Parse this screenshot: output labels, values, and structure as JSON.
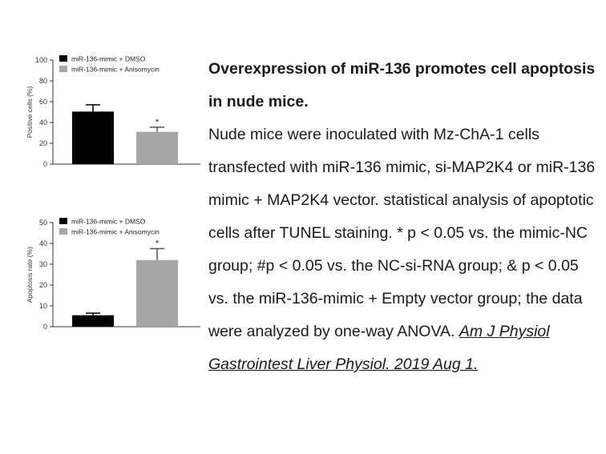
{
  "chart_data": [
    {
      "type": "bar",
      "ylabel": "Positive cells (%)",
      "ylim": [
        0,
        100
      ],
      "yticks": [
        0,
        20,
        40,
        60,
        80,
        100
      ],
      "categories": [
        "miR-136-mimic + DMSO",
        "miR-136-mimic + Anisomycin"
      ],
      "values": [
        50.5,
        31
      ],
      "errors": [
        6.5,
        4.5
      ],
      "annotations": [
        "",
        "*"
      ],
      "colors": [
        "#000000",
        "#a6a6a6"
      ],
      "legend": {
        "position": "top-left",
        "entries": [
          "miR-136-mimic + DMSO",
          "miR-136-mimic + Anisomycin"
        ]
      },
      "grid": false
    },
    {
      "type": "bar",
      "ylabel": "Apoptosis rate (%)",
      "ylim": [
        0,
        50
      ],
      "yticks": [
        0,
        10,
        20,
        30,
        40,
        50
      ],
      "categories": [
        "miR-136-mimic + DMSO",
        "miR-136-mimic + Anisomycin"
      ],
      "values": [
        5.5,
        32
      ],
      "errors": [
        1,
        5.5
      ],
      "annotations": [
        "",
        "*"
      ],
      "colors": [
        "#000000",
        "#a6a6a6"
      ],
      "legend": {
        "position": "top-left",
        "entries": [
          "miR-136-mimic + DMSO",
          "miR-136-mimic + Anisomycin"
        ]
      },
      "grid": false
    }
  ],
  "caption": {
    "title": "Overexpression of miR-136 promotes cell apoptosis in nude mice.",
    "body": "Nude mice were inoculated with Mz-ChA-1 cells transfected with miR-136 mimic, si-MAP2K4 or miR-136 mimic + MAP2K4 vector. statistical analysis of apoptotic cells after TUNEL staining. * p < 0.05 vs. the mimic-NC group; #p < 0.05 vs. the NC-si-RNA group; & p < 0.05 vs. the miR-136-mimic + Empty vector group; the data were analyzed by one-way ANOVA.",
    "citation": "Am J Physiol Gastrointest Liver Physiol. 2019 Aug 1."
  }
}
